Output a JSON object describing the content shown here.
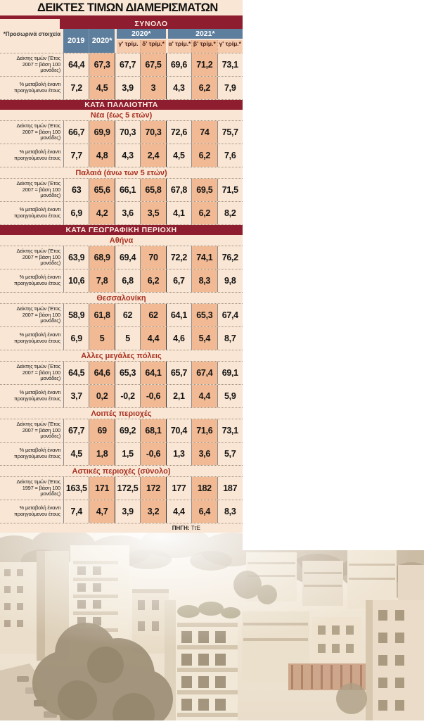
{
  "ui": {
    "title": "ΔΕΙΚΤΕΣ ΤΙΜΩΝ ΔΙΑΜΕΡΙΣΜΑΤΩΝ",
    "provisional_note": "*Προσωρινά στοιχεία",
    "source_label": "ΠΗΓΗ:",
    "source_value": "ΤτΕ"
  },
  "colors": {
    "maroon_bar": "#8e1e2f",
    "slate_header": "#5e7e9d",
    "cream_background": "#f9e6d4",
    "highlight_column": "#f1ba94",
    "quarter_header": "#f6ccae",
    "subheader_text": "#a93122"
  },
  "chart_data": {
    "type": "table",
    "title": "ΔΕΙΚΤΕΣ ΤΙΜΩΝ ΔΙΑΜΕΡΙΣΜΑΤΩΝ",
    "total_label": "ΣΥΝΟΛΟ",
    "col_headers": {
      "years": [
        "2019",
        "2020*"
      ],
      "groups": [
        {
          "label": "2020*",
          "quarters": [
            "γ' τρίμ.",
            "δ' τρίμ.*"
          ]
        },
        {
          "label": "2021*",
          "quarters": [
            "α' τρίμ.*",
            "β' τρίμ.*",
            "γ' τρίμ.*"
          ]
        }
      ]
    },
    "columns": [
      "2019",
      "2020*",
      "2020 γ' τρίμ.",
      "2020 δ' τρίμ.*",
      "2021 α' τρίμ.*",
      "2021 β' τρίμ.*",
      "2021 γ' τρίμ.*"
    ],
    "highlight_columns": [
      1,
      3,
      5
    ],
    "sections": [
      {
        "bar": null,
        "groups": [
          {
            "title": null,
            "index_label": "Δείκτης τιμών (Έτος 2007 = βάση 100 μονάδες)",
            "pct_label": "% μεταβολή έναντι προηγούμενου έτους",
            "index_values": [
              "64,4",
              "67,3",
              "67,7",
              "67,5",
              "69,6",
              "71,2",
              "73,1"
            ],
            "pct_values": [
              "7,2",
              "4,5",
              "3,9",
              "3",
              "4,3",
              "6,2",
              "7,9"
            ]
          }
        ]
      },
      {
        "bar": "ΚΑΤΑ ΠΑΛΑΙΟΤΗΤΑ",
        "groups": [
          {
            "title": "Νέα (έως 5 ετών)",
            "index_label": "Δείκτης τιμών (Έτος 2007 = βάση 100 μονάδες)",
            "pct_label": "% μεταβολή έναντι προηγούμενου έτους",
            "index_values": [
              "66,7",
              "69,9",
              "70,3",
              "70,3",
              "72,6",
              "74",
              "75,7"
            ],
            "pct_values": [
              "7,7",
              "4,8",
              "4,3",
              "2,4",
              "4,5",
              "6,2",
              "7,6"
            ]
          },
          {
            "title": "Παλαιά (άνω των 5 ετών)",
            "index_label": "Δείκτης τιμών (Έτος 2007 = βάση 100 μονάδες)",
            "pct_label": "% μεταβολή έναντι προηγούμενου έτους",
            "index_values": [
              "63",
              "65,6",
              "66,1",
              "65,8",
              "67,8",
              "69,5",
              "71,5"
            ],
            "pct_values": [
              "6,9",
              "4,2",
              "3,6",
              "3,5",
              "4,1",
              "6,2",
              "8,2"
            ]
          }
        ]
      },
      {
        "bar": "ΚΑΤΑ ΓΕΩΓΡΑΦΙΚΗ ΠΕΡΙΟΧΗ",
        "groups": [
          {
            "title": "Αθήνα",
            "index_label": "Δείκτης τιμών (Έτος 2007 = βάση 100 μονάδες)",
            "pct_label": "% μεταβολή έναντι προηγούμενου έτους",
            "index_values": [
              "63,9",
              "68,9",
              "69,4",
              "70",
              "72,2",
              "74,1",
              "76,2"
            ],
            "pct_values": [
              "10,6",
              "7,8",
              "6,8",
              "6,2",
              "6,7",
              "8,3",
              "9,8"
            ]
          },
          {
            "title": "Θεσσαλονίκη",
            "index_label": "Δείκτης τιμών (Έτος 2007 = βάση 100 μονάδες)",
            "pct_label": "% μεταβολή έναντι προηγούμενου έτους",
            "index_values": [
              "58,9",
              "61,8",
              "62",
              "62",
              "64,1",
              "65,3",
              "67,4"
            ],
            "pct_values": [
              "6,9",
              "5",
              "5",
              "4,4",
              "4,6",
              "5,4",
              "8,7"
            ]
          },
          {
            "title": "Αλλες μεγάλες πόλεις",
            "index_label": "Δείκτης τιμών (Έτος 2007 = βάση 100 μονάδες)",
            "pct_label": "% μεταβολή έναντι προηγούμενου έτους",
            "index_values": [
              "64,5",
              "64,6",
              "65,3",
              "64,1",
              "65,7",
              "67,4",
              "69,1"
            ],
            "pct_values": [
              "3,7",
              "0,2",
              "-0,2",
              "-0,6",
              "2,1",
              "4,4",
              "5,9"
            ]
          },
          {
            "title": "Λοιπές περιοχές",
            "index_label": "Δείκτης τιμών (Έτος 2007 = βάση 100 μονάδες)",
            "pct_label": "% μεταβολή έναντι προηγούμενου έτους",
            "index_values": [
              "67,7",
              "69",
              "69,2",
              "68,1",
              "70,4",
              "71,6",
              "73,1"
            ],
            "pct_values": [
              "4,5",
              "1,8",
              "1,5",
              "-0,6",
              "1,3",
              "3,6",
              "5,7"
            ]
          },
          {
            "title": "Αστικές περιοχές (σύνολο)",
            "index_label": "Δείκτης τιμών (Έτος 1997 = βάση 100 μονάδες)",
            "pct_label": "% μεταβολή έναντι προηγούμενου έτους",
            "index_values": [
              "163,5",
              "171",
              "172,5",
              "172",
              "177",
              "182",
              "187"
            ],
            "pct_values": [
              "7,4",
              "4,7",
              "3,9",
              "3,2",
              "4,4",
              "6,4",
              "8,3"
            ]
          }
        ]
      }
    ]
  }
}
